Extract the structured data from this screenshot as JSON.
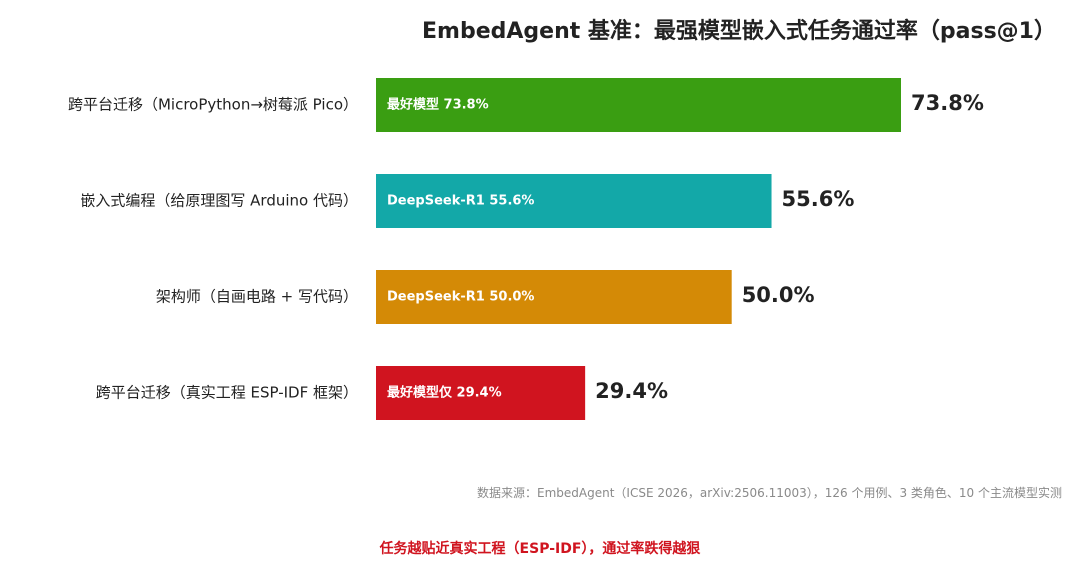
{
  "chart_data": {
    "type": "bar",
    "orientation": "horizontal",
    "title": "EmbedAgent 基准：最强模型嵌入式任务通过率（pass@1）",
    "xlim": [
      0,
      100
    ],
    "grid": false,
    "legend": "none",
    "categories": [
      "跨平台迁移（MicroPython→树莓派 Pico）",
      "嵌入式编程（给原理图写 Arduino 代码）",
      "架构师（自画电路 + 写代码）",
      "跨平台迁移（真实工程 ESP-IDF 框架）"
    ],
    "values": [
      73.8,
      55.6,
      50.0,
      29.4
    ],
    "value_labels": [
      "73.8%",
      "55.6%",
      "50.0%",
      "29.4%"
    ],
    "inner_labels": [
      "最好模型 73.8%",
      "DeepSeek-R1 55.6%",
      "DeepSeek-R1 50.0%",
      "最好模型仅 29.4%"
    ],
    "colors": [
      "#3a9e12",
      "#13a8a8",
      "#d48a06",
      "#d0141f"
    ]
  },
  "source_note": "数据来源：EmbedAgent（ICSE 2026，arXiv:2506.11003），126 个用例、3 类角色、10 个主流模型实测",
  "takeaway": "任务越贴近真实工程（ESP-IDF），通过率跌得越狠"
}
